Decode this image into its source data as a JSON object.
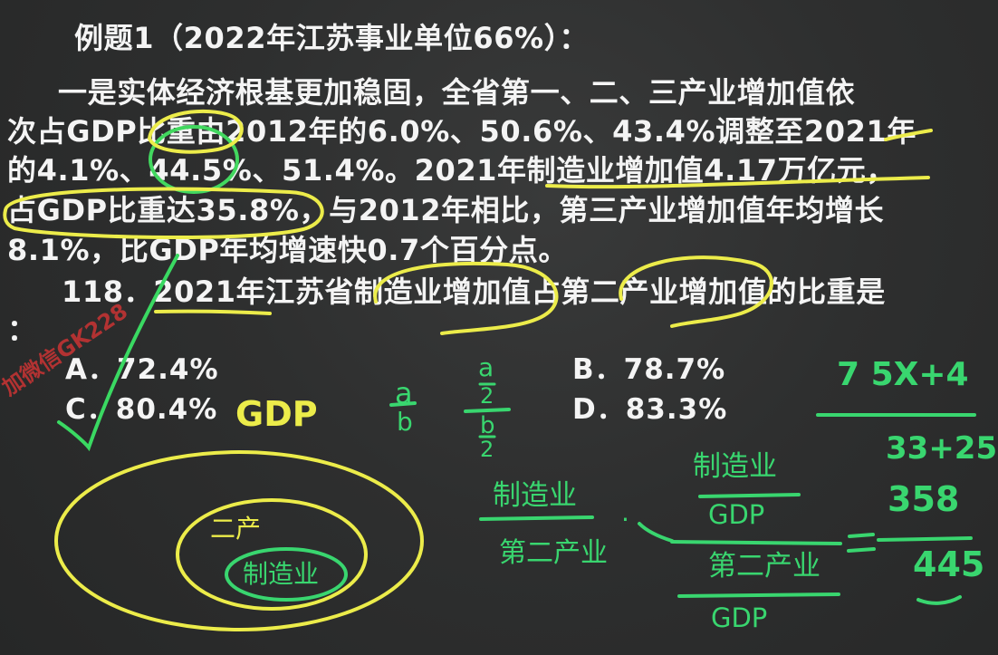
{
  "problem": {
    "title": "例题1（2022年江苏事业单位66%）：",
    "passage_lines": [
      "一是实体经济根基更加稳固，全省第一、二、三产业增加值依",
      "次占GDP比重由2012年的6.0%、50.6%、43.4%调整至2021年",
      "的4.1%、44.5%、51.4%。2021年制造业增加值4.17万亿元，",
      "占GDP比重达35.8%，与2012年相比，第三产业增加值年均增长",
      "8.1%，比GDP年均增速快0.7个百分点。"
    ],
    "question_line1": "118．2021年江苏省制造业增加值占第二产业增加值的比重是",
    "question_line2": "：",
    "options": {
      "A": "A．72.4%",
      "B": "B．78.7%",
      "C": "C．80.4%",
      "D": "D．83.3%"
    }
  },
  "annotations": {
    "gdp_yellow": "GDP",
    "outer_label": "二产",
    "inner_label": "制造业",
    "frac_left_num": "a",
    "frac_left_den": "b",
    "frac_mid_num": "a",
    "frac_mid_mid": "2",
    "frac_mid_den_top": "b",
    "frac_mid_den_bottom": "2",
    "ratio_left_num": "制造业",
    "ratio_left_den": "第二产业",
    "ratio_right_num_top": "制造业",
    "ratio_right_num_bottom": "GDP",
    "ratio_right_den_top": "第二产业",
    "ratio_right_den_bottom": "GDP",
    "calc_top": "7 5X+4",
    "calc_1": "33+25",
    "calc_2": "358",
    "calc_3": "445",
    "dot": "·",
    "watermark": "加微信GK228"
  },
  "colors": {
    "yellow": "#ecec4a",
    "green": "#39d66f",
    "background": "#2c2d2d",
    "text": "#f4f4f4"
  }
}
